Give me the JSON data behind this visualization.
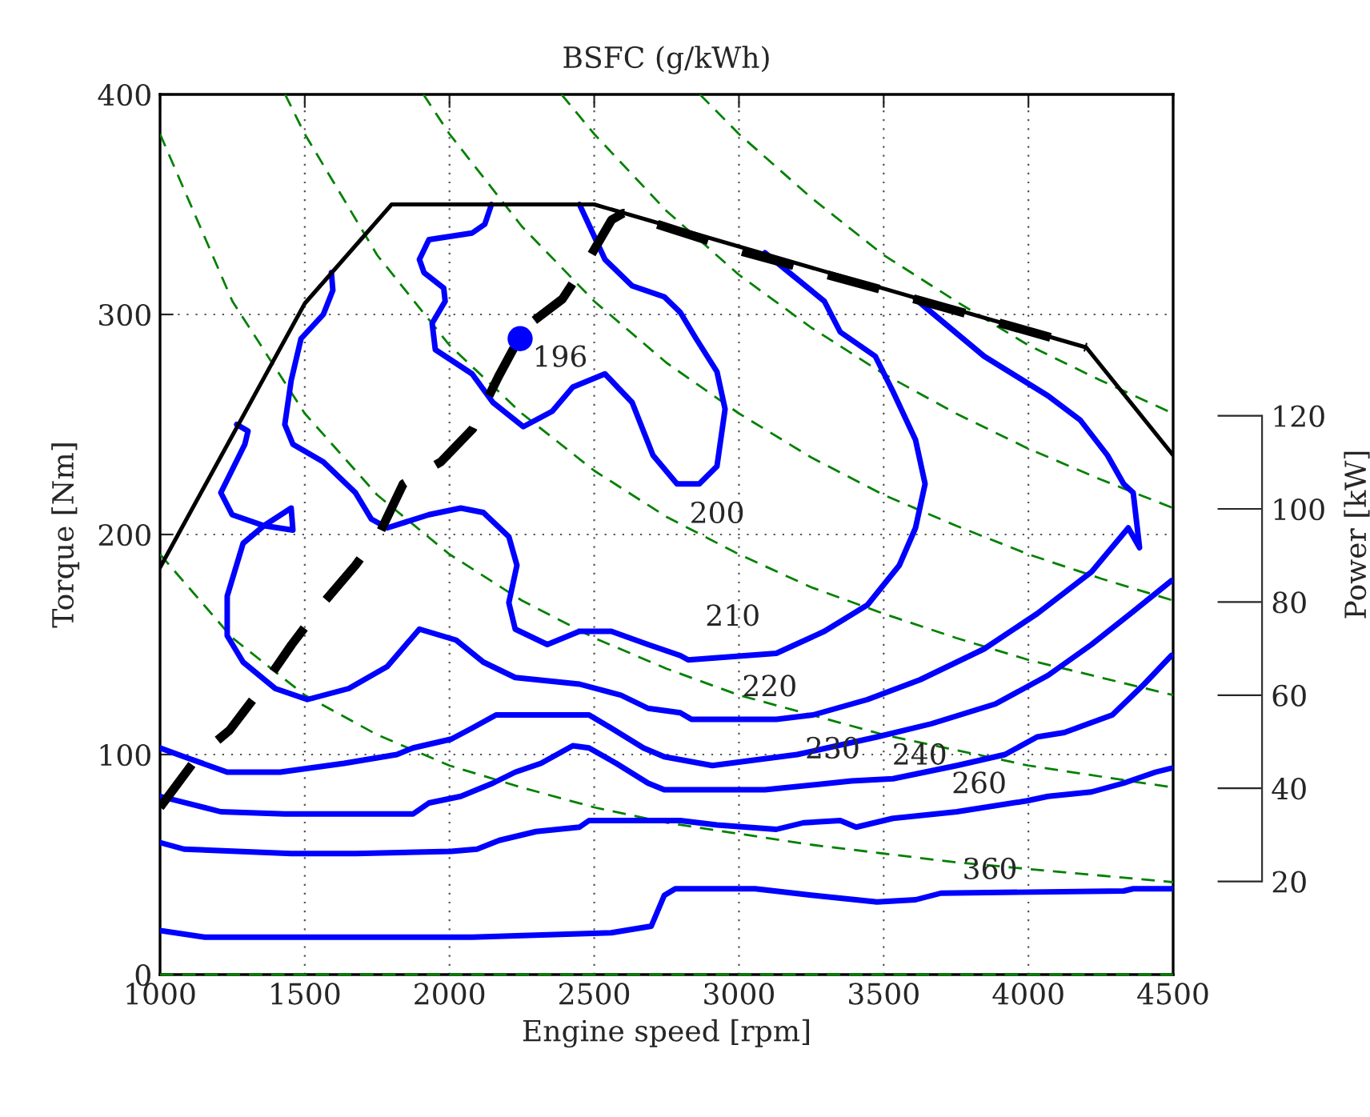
{
  "chart_data": {
    "type": "line",
    "title": "BSFC (g/kWh)",
    "xlabel": "Engine speed [rpm]",
    "ylabel": "Torque [Nm]",
    "y2label": "Power [kW]",
    "xlim": [
      1000,
      4500
    ],
    "xticks": [
      1000,
      1500,
      2000,
      2500,
      3000,
      3500,
      4000,
      4500
    ],
    "ylim": [
      0,
      400
    ],
    "yticks": [
      0,
      100,
      200,
      300,
      400
    ],
    "y2lim": [
      0,
      189
    ],
    "y2ticks": [
      20,
      40,
      60,
      80,
      100,
      120
    ],
    "grid": true,
    "series": [
      {
        "color": "#008000",
        "line_style": "dashed",
        "x": [
          1000,
          4500
        ],
        "values": [
          0,
          0
        ]
      },
      {
        "color": "#008000",
        "line_style": "dashed",
        "x": [
          1000,
          1250,
          1500,
          1750,
          2000,
          2250,
          2500,
          2750,
          3000,
          3250,
          3500,
          3750,
          4000,
          4250,
          4500
        ],
        "values": [
          191,
          153,
          127,
          109,
          95,
          85,
          76,
          69,
          64,
          59,
          55,
          51,
          48,
          45,
          42
        ]
      },
      {
        "color": "#008000",
        "line_style": "dashed",
        "x": [
          1000,
          1250,
          1500,
          1750,
          2000,
          2250,
          2500,
          2750,
          3000,
          3250,
          3500,
          3750,
          4000,
          4250,
          4500
        ],
        "values": [
          382,
          306,
          255,
          218,
          191,
          170,
          153,
          139,
          127,
          118,
          109,
          102,
          95,
          90,
          85
        ]
      },
      {
        "color": "#008000",
        "line_style": "dashed",
        "x": [
          1432,
          1500,
          1750,
          2000,
          2250,
          2500,
          2750,
          3000,
          3250,
          3500,
          3750,
          4000,
          4250,
          4500
        ],
        "values": [
          400,
          382,
          327,
          286,
          255,
          229,
          208,
          191,
          176,
          164,
          153,
          143,
          135,
          127
        ]
      },
      {
        "color": "#008000",
        "line_style": "dashed",
        "x": [
          1910,
          2000,
          2250,
          2500,
          2750,
          3000,
          3250,
          3500,
          3750,
          4000,
          4250,
          4500
        ],
        "values": [
          400,
          382,
          340,
          306,
          278,
          255,
          235,
          218,
          204,
          191,
          180,
          170
        ]
      },
      {
        "color": "#008000",
        "line_style": "dashed",
        "x": [
          2387,
          2500,
          2750,
          3000,
          3250,
          3500,
          3750,
          4000,
          4250,
          4500
        ],
        "values": [
          400,
          382,
          347,
          318,
          294,
          273,
          255,
          239,
          225,
          212
        ]
      },
      {
        "color": "#008000",
        "line_style": "dashed",
        "x": [
          2865,
          3000,
          3250,
          3500,
          3750,
          4000,
          4250,
          4500
        ],
        "values": [
          400,
          382,
          353,
          327,
          306,
          286,
          270,
          255
        ]
      },
      {
        "color": "#0000ff",
        "line_style": "solid",
        "x": [
          2145,
          2122,
          2078,
          1929,
          1896,
          1912,
          1980,
          1985,
          1940,
          1951,
          2078,
          2150,
          2255,
          2355,
          2426,
          2537,
          2631,
          2703,
          2786,
          2863,
          2924,
          2952,
          2924,
          2852,
          2797,
          2742,
          2631,
          2537,
          2449
        ],
        "values": [
          350,
          341,
          337,
          334,
          325,
          319,
          312,
          306,
          296,
          284,
          273,
          260,
          249,
          256,
          267,
          273,
          260,
          236,
          223,
          223,
          231,
          257,
          274,
          289,
          301,
          308,
          313,
          325,
          350
        ]
      },
      {
        "color": "#0000ff",
        "line_style": "solid",
        "x": [
          1592,
          1597,
          1564,
          1487,
          1453,
          1431,
          1459,
          1564,
          1675,
          1730,
          1785,
          1929,
          2039,
          2117,
          2205,
          2233,
          2205,
          2227,
          2338,
          2449,
          2559,
          2686,
          2797,
          2825,
          3129,
          3295,
          3444,
          3554,
          3610,
          3643,
          3610,
          3532,
          3471,
          3350,
          3295,
          3090
        ],
        "values": [
          319,
          311,
          300,
          289,
          270,
          250,
          241,
          233,
          219,
          207,
          203,
          209,
          212,
          210,
          199,
          186,
          169,
          157,
          150,
          156,
          156,
          150,
          145,
          143,
          146,
          156,
          168,
          186,
          203,
          223,
          243,
          265,
          281,
          292,
          306,
          328
        ]
      },
      {
        "color": "#0000ff",
        "line_style": "solid",
        "x": [
          1265,
          1304,
          1293,
          1210,
          1249,
          1359,
          1459,
          1453,
          1359,
          1287,
          1232,
          1232,
          1287,
          1398,
          1509,
          1652,
          1785,
          1896,
          2023,
          2117,
          2227,
          2449,
          2592,
          2686,
          2797,
          2836,
          3129,
          3256,
          3444,
          3626,
          3847,
          4030,
          4218,
          4345,
          4384,
          4362,
          4329,
          4273,
          4179,
          4068,
          3847,
          3610
        ],
        "values": [
          250,
          247,
          241,
          219,
          209,
          204,
          202,
          212,
          204,
          196,
          172,
          154,
          142,
          130,
          125,
          130,
          140,
          157,
          152,
          142,
          135,
          132,
          127,
          121,
          119,
          116,
          116,
          118,
          125,
          134,
          148,
          164,
          183,
          203,
          194,
          219,
          223,
          236,
          252,
          263,
          281,
          307
        ]
      },
      {
        "color": "#0000ff",
        "line_style": "solid",
        "x": [
          1000,
          1083,
          1232,
          1415,
          1636,
          1818,
          1874,
          2006,
          2078,
          2161,
          2482,
          2559,
          2670,
          2742,
          2908,
          3201,
          3477,
          3665,
          3886,
          4068,
          4218,
          4362,
          4494
        ],
        "values": [
          103,
          99,
          92,
          92,
          96,
          100,
          103,
          107,
          112,
          118,
          118,
          112,
          103,
          99,
          95,
          100,
          108,
          114,
          123,
          136,
          150,
          165,
          179
        ]
      },
      {
        "color": "#0000ff",
        "line_style": "solid",
        "x": [
          1000,
          1210,
          1431,
          1874,
          1929,
          2039,
          2150,
          2227,
          2316,
          2426,
          2482,
          2576,
          2686,
          2742,
          2852,
          3090,
          3389,
          3532,
          3753,
          3919,
          4030,
          4124,
          4290,
          4400,
          4494
        ],
        "values": [
          81,
          74,
          73,
          73,
          78,
          81,
          87,
          92,
          96,
          104,
          103,
          96,
          87,
          84,
          84,
          84,
          88,
          89,
          95,
          100,
          108,
          110,
          118,
          132,
          145
        ]
      },
      {
        "color": "#0000ff",
        "line_style": "solid",
        "x": [
          1000,
          1083,
          1453,
          1675,
          2006,
          2095,
          2172,
          2299,
          2449,
          2482,
          2631,
          2797,
          2924,
          3129,
          3223,
          3350,
          3405,
          3532,
          3753,
          3996,
          4068,
          4218,
          4329,
          4439,
          4500
        ],
        "values": [
          60,
          57,
          55,
          55,
          56,
          57,
          61,
          65,
          67,
          70,
          70,
          70,
          68,
          66,
          69,
          70,
          67,
          71,
          74,
          79,
          81,
          83,
          87,
          92,
          94
        ]
      },
      {
        "color": "#0000ff",
        "line_style": "solid",
        "x": [
          1000,
          1155,
          2078,
          2559,
          2697,
          2742,
          2780,
          3056,
          3256,
          3477,
          3610,
          3698,
          4329,
          4362,
          4500
        ],
        "values": [
          20,
          17,
          17,
          19,
          22,
          36,
          39,
          39,
          36,
          33,
          34,
          37,
          38,
          39,
          39
        ]
      },
      {
        "type": "scatter",
        "color": "#0000ff",
        "marker": "circle",
        "x": [
          2244
        ],
        "values": [
          289
        ]
      },
      {
        "color": "#000000",
        "line_style": "solid",
        "x": [
          1000,
          1500,
          1800,
          2500,
          4200,
          4500
        ],
        "values": [
          185,
          305,
          350,
          350,
          285,
          236
        ]
      },
      {
        "color": "#000000",
        "line_style": "dashed",
        "x": [
          1000,
          1130,
          1240,
          1350,
          1455,
          1565,
          1675,
          1760,
          1840,
          1970,
          2080,
          2170,
          2260,
          2390,
          2480,
          2560,
          2600,
          3000,
          3500,
          4200
        ],
        "values": [
          76,
          99,
          111,
          130,
          150,
          169,
          186,
          201,
          223,
          233,
          248,
          272,
          294,
          307,
          325,
          343,
          346,
          329,
          311,
          285
        ]
      }
    ],
    "annotations": [
      {
        "text": "196",
        "x": 2244,
        "y": 289
      },
      {
        "text": "200",
        "x": 2863,
        "y": 223
      },
      {
        "text": "210",
        "x": 2825,
        "y": 143
      },
      {
        "text": "220",
        "x": 3129,
        "y": 116
      },
      {
        "text": "230",
        "x": 3477,
        "y": 108
      },
      {
        "text": "240",
        "x": 3532,
        "y": 89
      },
      {
        "text": "260",
        "x": 3753,
        "y": 74
      },
      {
        "text": "360",
        "x": 3698,
        "y": 37
      }
    ]
  }
}
